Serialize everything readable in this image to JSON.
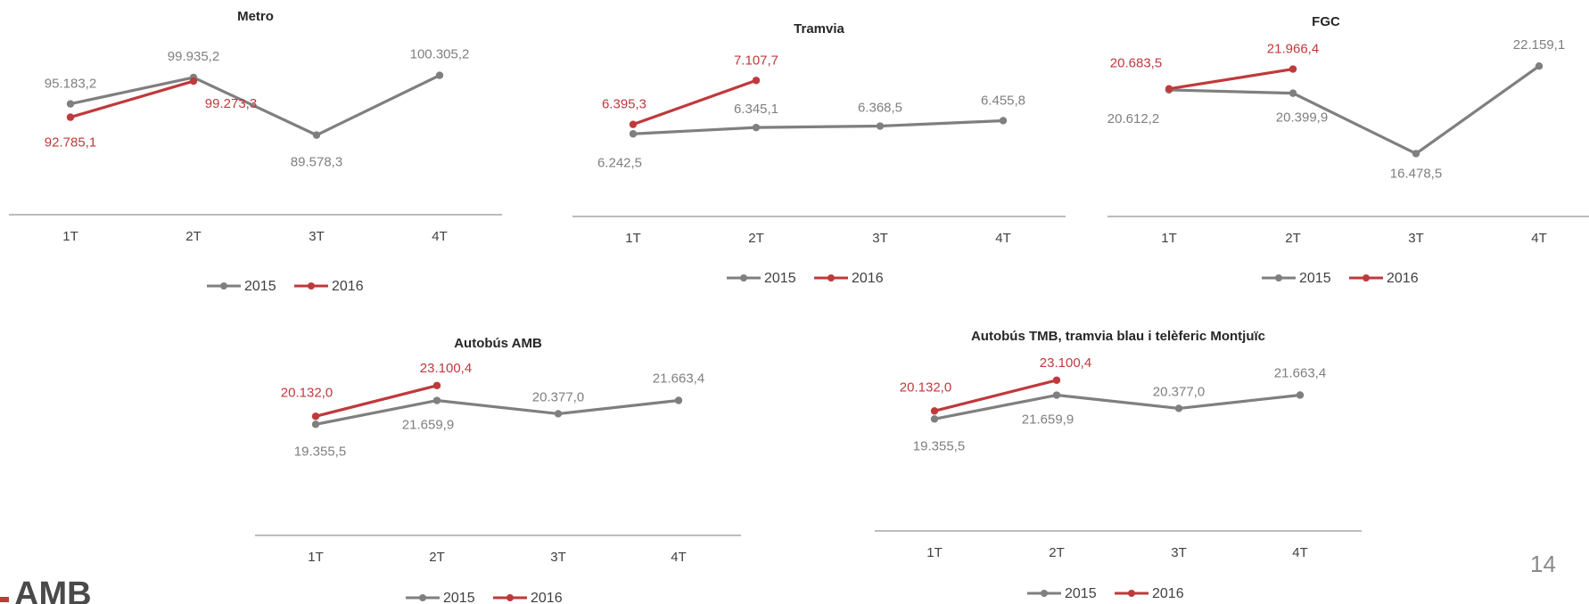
{
  "colors": {
    "2015": "#7f7f7f",
    "2016": "#c0393b",
    "axis": "#a6a6a6",
    "text": "#595959",
    "title": "#262626"
  },
  "page_number": "14",
  "logo": {
    "text": "AMB"
  },
  "chart_data": [
    {
      "type": "line",
      "title": "Metro",
      "categories": [
        "1T",
        "2T",
        "3T",
        "4T"
      ],
      "series": [
        {
          "name": "2015",
          "values": [
            95183.2,
            99935.2,
            89578.3,
            100305.2
          ],
          "labels": [
            "95.183,2",
            "99.935,2",
            "89.578,3",
            "100.305,2"
          ]
        },
        {
          "name": "2016",
          "values": [
            92785.1,
            99273.3,
            null,
            null
          ],
          "labels": [
            "92.785,1",
            "99.273,3",
            "",
            ""
          ]
        }
      ],
      "ylim": [
        82000,
        106000
      ]
    },
    {
      "type": "line",
      "title": "Tramvia",
      "categories": [
        "1T",
        "2T",
        "3T",
        "4T"
      ],
      "series": [
        {
          "name": "2015",
          "values": [
            6242.5,
            6345.1,
            6368.5,
            6455.8
          ],
          "labels": [
            "6.242,5",
            "6.345,1",
            "6.368,5",
            "6.455,8"
          ]
        },
        {
          "name": "2016",
          "values": [
            6395.3,
            7107.7,
            null,
            null
          ],
          "labels": [
            "6.395,3",
            "7.107,7",
            "",
            ""
          ]
        }
      ],
      "ylim": [
        5900,
        7400
      ]
    },
    {
      "type": "line",
      "title": "FGC",
      "categories": [
        "1T",
        "2T",
        "3T",
        "4T"
      ],
      "series": [
        {
          "name": "2015",
          "values": [
            20612.2,
            20399.9,
            16478.5,
            22159.1
          ],
          "labels": [
            "20.612,2",
            "20.399,9",
            "16.478,5",
            "22.159,1"
          ]
        },
        {
          "name": "2016",
          "values": [
            20683.5,
            21966.4,
            null,
            null
          ],
          "labels": [
            "20.683,5",
            "21.966,4",
            "",
            ""
          ]
        }
      ],
      "ylim": [
        15000,
        23500
      ]
    },
    {
      "type": "line",
      "title": "Autobús AMB",
      "categories": [
        "1T",
        "2T",
        "3T",
        "4T"
      ],
      "series": [
        {
          "name": "2015",
          "values": [
            19355.5,
            21659.9,
            20377.0,
            21663.4
          ],
          "labels": [
            "19.355,5",
            "21.659,9",
            "20.377,0",
            "21.663,4"
          ]
        },
        {
          "name": "2016",
          "values": [
            20132.0,
            23100.4,
            null,
            null
          ],
          "labels": [
            "20.132,0",
            "23.100,4",
            "",
            ""
          ]
        }
      ],
      "ylim": [
        15000,
        24800
      ]
    },
    {
      "type": "line",
      "title": "Autobús TMB, tramvia blau i telèferic Montjuïc",
      "categories": [
        "1T",
        "2T",
        "3T",
        "4T"
      ],
      "series": [
        {
          "name": "2015",
          "values": [
            19355.5,
            21659.9,
            20377.0,
            21663.4
          ],
          "labels": [
            "19.355,5",
            "21.659,9",
            "20.377,0",
            "21.663,4"
          ]
        },
        {
          "name": "2016",
          "values": [
            20132.0,
            23100.4,
            null,
            null
          ],
          "labels": [
            "20.132,0",
            "23.100,4",
            "",
            ""
          ]
        }
      ],
      "ylim": [
        15000,
        24800
      ]
    }
  ]
}
